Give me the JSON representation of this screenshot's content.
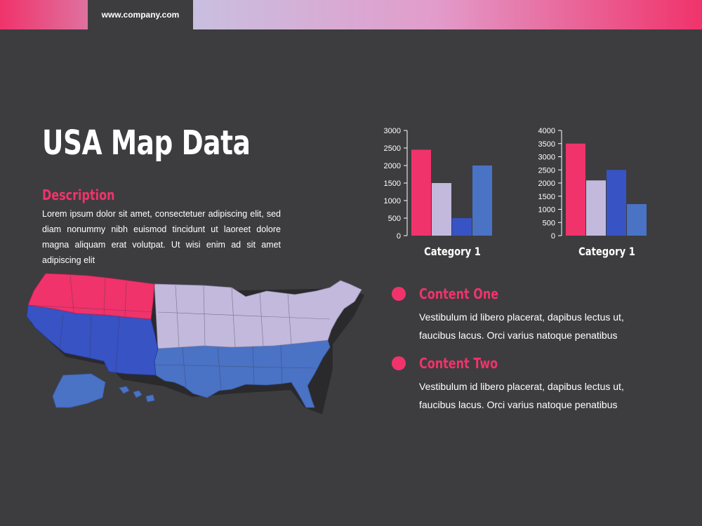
{
  "header": {
    "url": "www.company.com"
  },
  "slide": {
    "title": "USA Map Data",
    "description_label": "Description",
    "description_text": "Lorem ipsum dolor sit amet, consectetuer adipiscing elit, sed diam nonummy nibh euismod tincidunt ut laoreet dolore magna aliquam erat volutpat. Ut wisi enim ad sit amet adipiscing elit"
  },
  "colors": {
    "accent": "#f0336b",
    "lavender": "#c2b9dc",
    "blue": "#3753c4",
    "mid_blue": "#4a72c5",
    "background": "#3d3d3f"
  },
  "chart_data": [
    {
      "type": "bar",
      "categories": [
        "Category 1"
      ],
      "series": [
        {
          "values": [
            2450
          ]
        },
        {
          "values": [
            1500
          ]
        },
        {
          "values": [
            500
          ]
        },
        {
          "values": [
            2000
          ]
        }
      ],
      "series_colors": [
        "#f0336b",
        "#c2b9dc",
        "#3753c4",
        "#4a72c5"
      ],
      "ylim": [
        0,
        3000
      ],
      "yticks": [
        0,
        500,
        1000,
        1500,
        2000,
        2500,
        3000
      ],
      "grid": false
    },
    {
      "type": "bar",
      "categories": [
        "Category 1"
      ],
      "series": [
        {
          "values": [
            3500
          ]
        },
        {
          "values": [
            2100
          ]
        },
        {
          "values": [
            2500
          ]
        },
        {
          "values": [
            1200
          ]
        }
      ],
      "series_colors": [
        "#f0336b",
        "#c2b9dc",
        "#3753c4",
        "#4a72c5"
      ],
      "ylim": [
        0,
        4000
      ],
      "yticks": [
        0,
        500,
        1000,
        1500,
        2000,
        2500,
        3000,
        3500,
        4000
      ],
      "grid": false
    }
  ],
  "contents": [
    {
      "heading": "Content One",
      "body": "Vestibulum id libero placerat, dapibus lectus ut, faucibus lacus. Orci varius natoque penatibus"
    },
    {
      "heading": "Content Two",
      "body": "Vestibulum id libero placerat, dapibus lectus ut, faucibus lacus. Orci varius natoque penatibus"
    }
  ],
  "map": {
    "regions": [
      {
        "name": "northwest",
        "color": "#f0336b"
      },
      {
        "name": "southwest",
        "color": "#3753c4"
      },
      {
        "name": "north-central-east",
        "color": "#c2b9dc"
      },
      {
        "name": "south",
        "color": "#4a72c5"
      }
    ]
  }
}
